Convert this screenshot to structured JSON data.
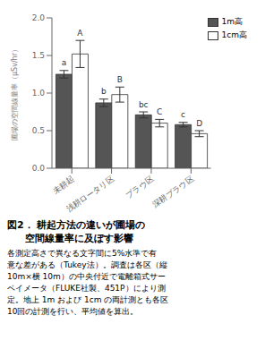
{
  "chart_data": {
    "type": "bar",
    "categories": [
      "未耕起",
      "浅耕ロータリ区",
      "プラウ区",
      "深耕プラウ区"
    ],
    "series": [
      {
        "name": "1m高",
        "color": "#555555",
        "values": [
          1.25,
          0.87,
          0.71,
          0.58
        ],
        "errors": [
          0.05,
          0.05,
          0.04,
          0.03
        ],
        "annotations": [
          "a",
          "b",
          "bc",
          "c"
        ]
      },
      {
        "name": "1cm高",
        "color": "#ffffff",
        "values": [
          1.52,
          0.98,
          0.6,
          0.46
        ],
        "errors": [
          0.18,
          0.1,
          0.05,
          0.04
        ],
        "annotations": [
          "A",
          "B",
          "C",
          "D"
        ]
      }
    ],
    "ylabel": "圃場の空間線量率（μSv/hr）",
    "ylim": [
      0.0,
      2.0
    ],
    "yticks": [
      {
        "value": 0.0,
        "label": "0.0"
      },
      {
        "value": 0.5,
        "label": "0.5"
      },
      {
        "value": 1.0,
        "label": "1.0"
      },
      {
        "value": 1.5,
        "label": "1.5"
      },
      {
        "value": 2.0,
        "label": "2.0"
      }
    ],
    "grid": false,
    "legend": "upper right",
    "caption": [
      "図2． 耕起方法の違いが圃場の",
      "空間線量率に及ぼす影響"
    ],
    "note": [
      "各測定高さで異なる文字間に5%水準で有",
      "意な差がある（Tukey法）。調査は各区（縦",
      "10m×横 10m）の中央付近で電離箱式サー",
      "ベイメータ（FLUKE社製、451P）により測",
      "定。地上 1m および 1cm の両計測とも各区",
      "10回の計測を行い、平均値を算出。"
    ]
  }
}
